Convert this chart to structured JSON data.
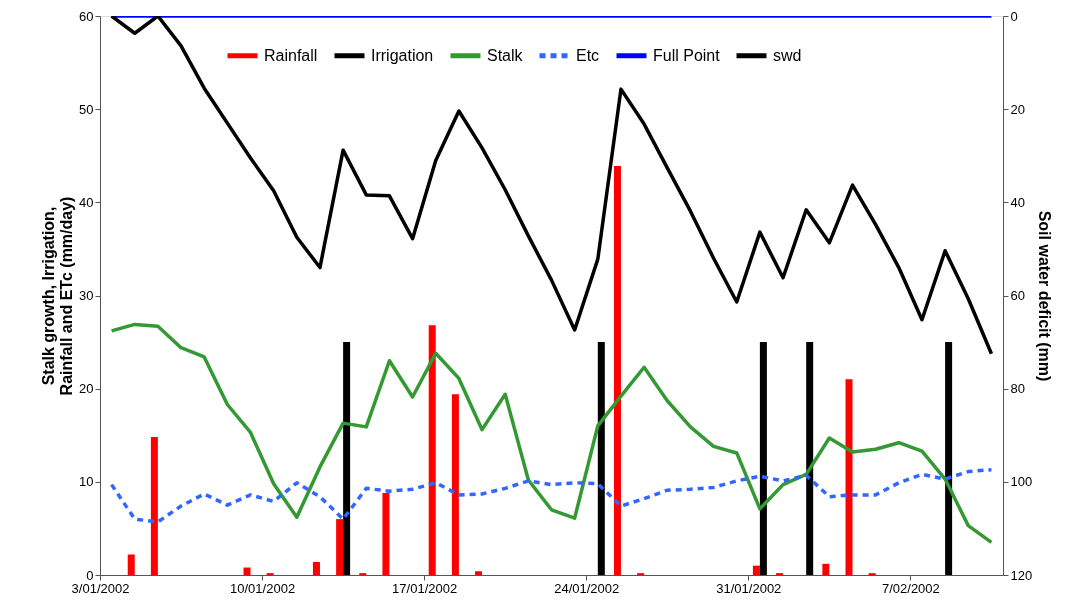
{
  "chart_data": {
    "type": "line",
    "ylabel": "Stalk growth, Irrigation, Rainfall and ETc (mm/day)",
    "y2label": "Soil water deficit (mm)",
    "x": [
      "2002-01-03T12:00",
      "2002-01-04T12:00",
      "2002-01-05T12:00",
      "2002-01-06T12:00",
      "2002-01-07T12:00",
      "2002-01-08T12:00",
      "2002-01-09T12:00",
      "2002-01-10T12:00",
      "2002-01-11T12:00",
      "2002-01-12T12:00",
      "2002-01-13T12:00",
      "2002-01-14T12:00",
      "2002-01-15T12:00",
      "2002-01-16T12:00",
      "2002-01-17T12:00",
      "2002-01-18T12:00",
      "2002-01-19T12:00",
      "2002-01-20T12:00",
      "2002-01-21T12:00",
      "2002-01-22T12:00",
      "2002-01-23T12:00",
      "2002-01-24T12:00",
      "2002-01-25T12:00",
      "2002-01-26T12:00",
      "2002-01-27T12:00",
      "2002-01-28T12:00",
      "2002-01-29T12:00",
      "2002-01-30T12:00",
      "2002-01-31T12:00",
      "2002-02-01T12:00",
      "2002-02-02T12:00",
      "2002-02-03T12:00",
      "2002-02-04T12:00",
      "2002-02-05T12:00",
      "2002-02-06T12:00",
      "2002-02-07T12:00",
      "2002-02-08T12:00",
      "2002-02-09T12:00",
      "2002-02-10T12:00"
    ],
    "series": [
      {
        "name": "Rainfall",
        "type": "bar",
        "color": "#ff0000",
        "values": [
          null,
          2.2,
          14.8,
          null,
          null,
          null,
          0.8,
          0.2,
          null,
          1.4,
          6.0,
          0.2,
          8.8,
          null,
          26.8,
          19.4,
          0.4,
          null,
          null,
          null,
          null,
          null,
          43.9,
          0.2,
          null,
          null,
          null,
          null,
          1.0,
          0.2,
          null,
          1.2,
          21.0,
          0.2,
          null,
          null,
          null,
          null,
          null
        ]
      },
      {
        "name": "Irrigation",
        "type": "bar",
        "color": "#000000",
        "values": [
          null,
          null,
          null,
          null,
          null,
          null,
          null,
          null,
          null,
          null,
          25,
          null,
          null,
          null,
          null,
          null,
          null,
          null,
          null,
          null,
          null,
          25,
          null,
          null,
          null,
          null,
          null,
          null,
          25,
          null,
          25,
          null,
          null,
          null,
          null,
          null,
          25,
          null,
          null
        ]
      },
      {
        "name": "Stalk",
        "type": "line",
        "color": "#339933",
        "line_style": "solid",
        "values": [
          26.2,
          26.9,
          26.7,
          24.4,
          23.4,
          18.3,
          15.3,
          9.8,
          6.2,
          11.6,
          16.3,
          15.9,
          23.0,
          19.1,
          23.8,
          21.1,
          15.6,
          19.4,
          10.2,
          7.0,
          6.1,
          16.0,
          19.2,
          22.3,
          18.7,
          15.9,
          13.8,
          13.1,
          7.1,
          9.7,
          10.8,
          14.7,
          13.2,
          13.5,
          14.2,
          13.3,
          10.3,
          5.3,
          3.5
        ]
      },
      {
        "name": "Etc",
        "type": "line",
        "color": "#3366ff",
        "line_style": "dashed",
        "values": [
          9.7,
          6.0,
          5.7,
          7.4,
          8.7,
          7.5,
          8.6,
          7.9,
          9.9,
          8.4,
          6.0,
          9.3,
          9.0,
          9.2,
          9.9,
          8.6,
          8.7,
          9.3,
          10.1,
          9.7,
          9.9,
          9.8,
          7.4,
          8.2,
          9.1,
          9.2,
          9.4,
          10.1,
          10.6,
          10.1,
          10.7,
          8.4,
          8.6,
          8.6,
          9.9,
          10.8,
          10.3,
          11.1,
          11.3
        ]
      },
      {
        "name": "Full Point",
        "type": "line",
        "axis": "y2",
        "color": "#0000ff",
        "line_style": "solid",
        "values": [
          0,
          0,
          0,
          0,
          0,
          0,
          0,
          0,
          0,
          0,
          0,
          0,
          0,
          0,
          0,
          0,
          0,
          0,
          0,
          0,
          0,
          0,
          0,
          0,
          0,
          0,
          0,
          0,
          0,
          0,
          0,
          0,
          0,
          0,
          0,
          0,
          0,
          0,
          0
        ]
      },
      {
        "name": "swd",
        "type": "line",
        "axis": "y2",
        "color": "#000000",
        "line_style": "solid",
        "values": [
          0,
          3.7,
          0,
          6.4,
          15.5,
          23,
          30.5,
          37.5,
          47.5,
          54,
          28.8,
          38.4,
          38.6,
          47.8,
          31,
          20.4,
          28.3,
          37.3,
          47.2,
          56.7,
          67.4,
          52.2,
          15.7,
          23.2,
          32.6,
          41.9,
          52,
          61.4,
          46.4,
          56.2,
          41.6,
          48.7,
          36.3,
          44.8,
          54,
          65.2,
          50.4,
          60.7,
          72.5
        ]
      }
    ],
    "xlim": [
      "2002-01-03",
      "2002-02-11"
    ],
    "xticks": [
      {
        "value": "2002-01-03",
        "label": "3/01/2002"
      },
      {
        "value": "2002-01-10",
        "label": "10/01/2002"
      },
      {
        "value": "2002-01-17",
        "label": "17/01/2002"
      },
      {
        "value": "2002-01-24",
        "label": "24/01/2002"
      },
      {
        "value": "2002-01-31",
        "label": "31/01/2002"
      },
      {
        "value": "2002-02-07",
        "label": "7/02/2002"
      }
    ],
    "ylim": [
      0,
      60
    ],
    "yticks": [
      0,
      10,
      20,
      30,
      40,
      50,
      60
    ],
    "y2lim": [
      120,
      0
    ],
    "y2ticks": [
      0,
      20,
      40,
      60,
      80,
      100,
      120
    ],
    "grid": false,
    "legend": "top"
  }
}
